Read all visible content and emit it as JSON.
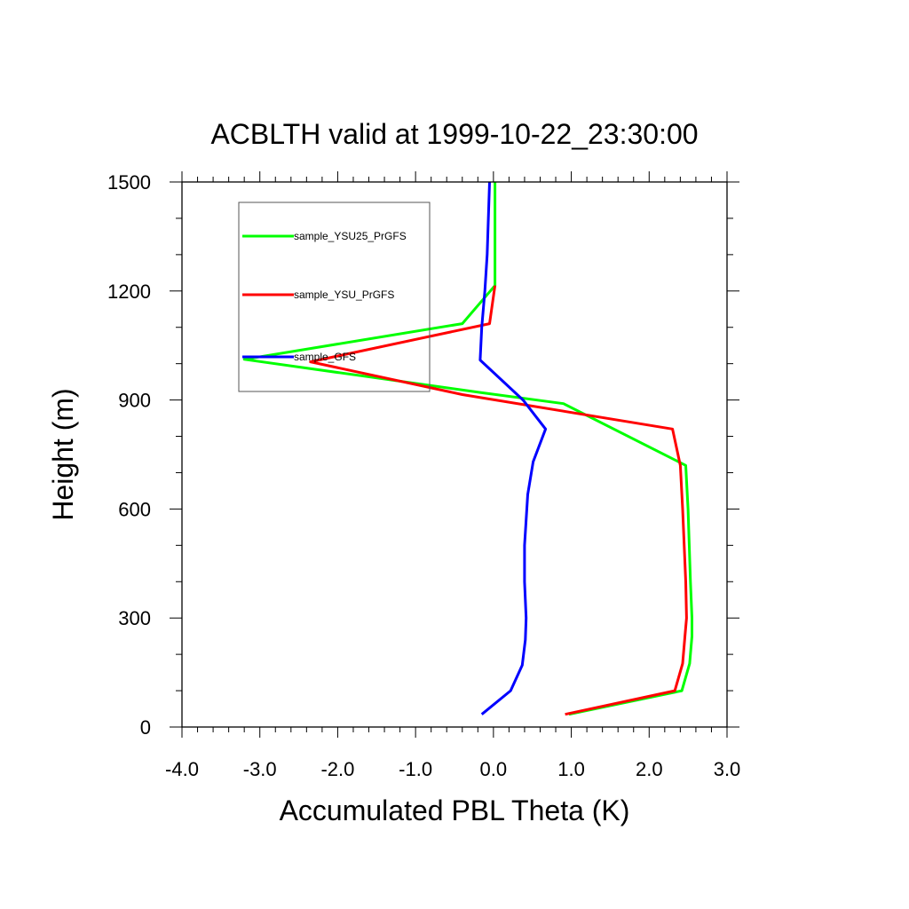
{
  "chart_data": {
    "type": "line",
    "title": "ACBLTH valid at 1999-10-22_23:30:00",
    "xlabel": "Accumulated PBL Theta (K)",
    "ylabel": "Height (m)",
    "xlim": [
      -4.0,
      3.0
    ],
    "ylim": [
      0,
      1500
    ],
    "xticks": [
      -4.0,
      -3.0,
      -2.0,
      -1.0,
      0.0,
      1.0,
      2.0,
      3.0
    ],
    "xtick_labels": [
      "-4.0",
      "-3.0",
      "-2.0",
      "-1.0",
      "0.0",
      "1.0",
      "2.0",
      "3.0"
    ],
    "yticks": [
      0,
      300,
      600,
      900,
      1200,
      1500
    ],
    "ytick_labels": [
      "0",
      "300",
      "600",
      "900",
      "1200",
      "1500"
    ],
    "grid": false,
    "legend_position": "top-left",
    "series": [
      {
        "name": "sample_YSU25_PrGFS",
        "color": "#00ff00",
        "x": [
          0.97,
          2.42,
          2.52,
          2.55,
          2.55,
          2.53,
          2.5,
          2.47,
          0.9,
          -0.15,
          -3.2,
          -0.4,
          0.02,
          0.02,
          0.02
        ],
        "y": [
          35,
          100,
          175,
          250,
          300,
          400,
          600,
          720,
          890,
          920,
          1012,
          1110,
          1215,
          1320,
          1500
        ]
      },
      {
        "name": "sample_YSU_PrGFS",
        "color": "#ff0000",
        "x": [
          0.92,
          2.33,
          2.43,
          2.46,
          2.48,
          2.47,
          2.43,
          2.4,
          2.3,
          -0.4,
          -2.35,
          -0.05,
          0.02
        ],
        "y": [
          35,
          100,
          175,
          250,
          300,
          400,
          600,
          720,
          820,
          915,
          1005,
          1110,
          1215
        ]
      },
      {
        "name": "sample_GFS",
        "color": "#0000ff",
        "x": [
          -0.15,
          0.22,
          0.37,
          0.41,
          0.42,
          0.4,
          0.4,
          0.44,
          0.51,
          0.67,
          0.38,
          -0.17,
          -0.15,
          -0.11,
          -0.08,
          -0.05
        ],
        "y": [
          35,
          100,
          170,
          240,
          300,
          400,
          500,
          640,
          730,
          820,
          900,
          1010,
          1100,
          1200,
          1300,
          1500
        ]
      }
    ]
  }
}
